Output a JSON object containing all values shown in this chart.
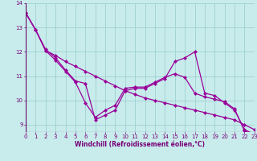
{
  "line1_x": [
    0,
    1,
    2,
    3,
    4,
    5,
    6,
    7,
    8,
    9,
    10,
    11,
    12,
    13,
    14,
    15,
    16,
    17,
    18,
    19,
    20,
    21,
    22,
    23
  ],
  "line1_y": [
    13.6,
    12.9,
    12.1,
    11.75,
    11.25,
    10.8,
    10.7,
    9.2,
    9.4,
    9.6,
    10.4,
    10.5,
    10.5,
    10.7,
    10.9,
    11.6,
    11.75,
    12.0,
    10.3,
    10.2,
    9.9,
    9.6,
    8.8,
    8.6
  ],
  "line2_x": [
    0,
    1,
    2,
    3,
    4,
    5,
    6,
    7,
    8,
    9,
    10,
    11,
    12,
    13,
    14,
    15,
    16,
    17,
    18,
    19,
    20,
    21,
    22,
    23
  ],
  "line2_y": [
    13.6,
    12.9,
    12.05,
    11.65,
    11.2,
    10.75,
    9.9,
    9.3,
    9.6,
    9.8,
    10.5,
    10.55,
    10.55,
    10.75,
    10.95,
    11.1,
    10.95,
    10.3,
    10.15,
    10.05,
    9.95,
    9.65,
    8.75,
    8.55
  ],
  "line3_x": [
    0,
    1,
    2,
    3,
    4,
    5,
    6,
    7,
    8,
    9,
    10,
    11,
    12,
    13,
    14,
    15,
    16,
    17,
    18,
    19,
    20,
    21,
    22,
    23
  ],
  "line3_y": [
    13.6,
    12.9,
    12.05,
    11.85,
    11.6,
    11.4,
    11.2,
    11.0,
    10.8,
    10.6,
    10.4,
    10.25,
    10.1,
    10.0,
    9.9,
    9.8,
    9.7,
    9.6,
    9.5,
    9.4,
    9.3,
    9.2,
    9.0,
    8.8
  ],
  "x": [
    0,
    1,
    2,
    3,
    4,
    5,
    6,
    7,
    8,
    9,
    10,
    11,
    12,
    13,
    14,
    15,
    16,
    17,
    18,
    19,
    20,
    21,
    22,
    23
  ],
  "xlim": [
    0,
    23
  ],
  "ylim": [
    8.7,
    14.0
  ],
  "yticks": [
    9,
    10,
    11,
    12,
    13,
    14
  ],
  "xtick_labels": [
    "0",
    "1",
    "2",
    "3",
    "4",
    "5",
    "6",
    "7",
    "8",
    "9",
    "10",
    "11",
    "12",
    "13",
    "14",
    "15",
    "16",
    "17",
    "18",
    "19",
    "20",
    "21",
    "22",
    "23"
  ],
  "xlabel": "Windchill (Refroidissement éolien,°C)",
  "line_color": "#990099",
  "bg_color": "#c8ecec",
  "grid_color": "#a0d0d0",
  "axis_color": "#660066",
  "tick_color": "#770077",
  "marker": "D",
  "markersize": 2.5,
  "linewidth": 0.9,
  "xlabel_fontsize": 5.5,
  "tick_fontsize": 5.0
}
